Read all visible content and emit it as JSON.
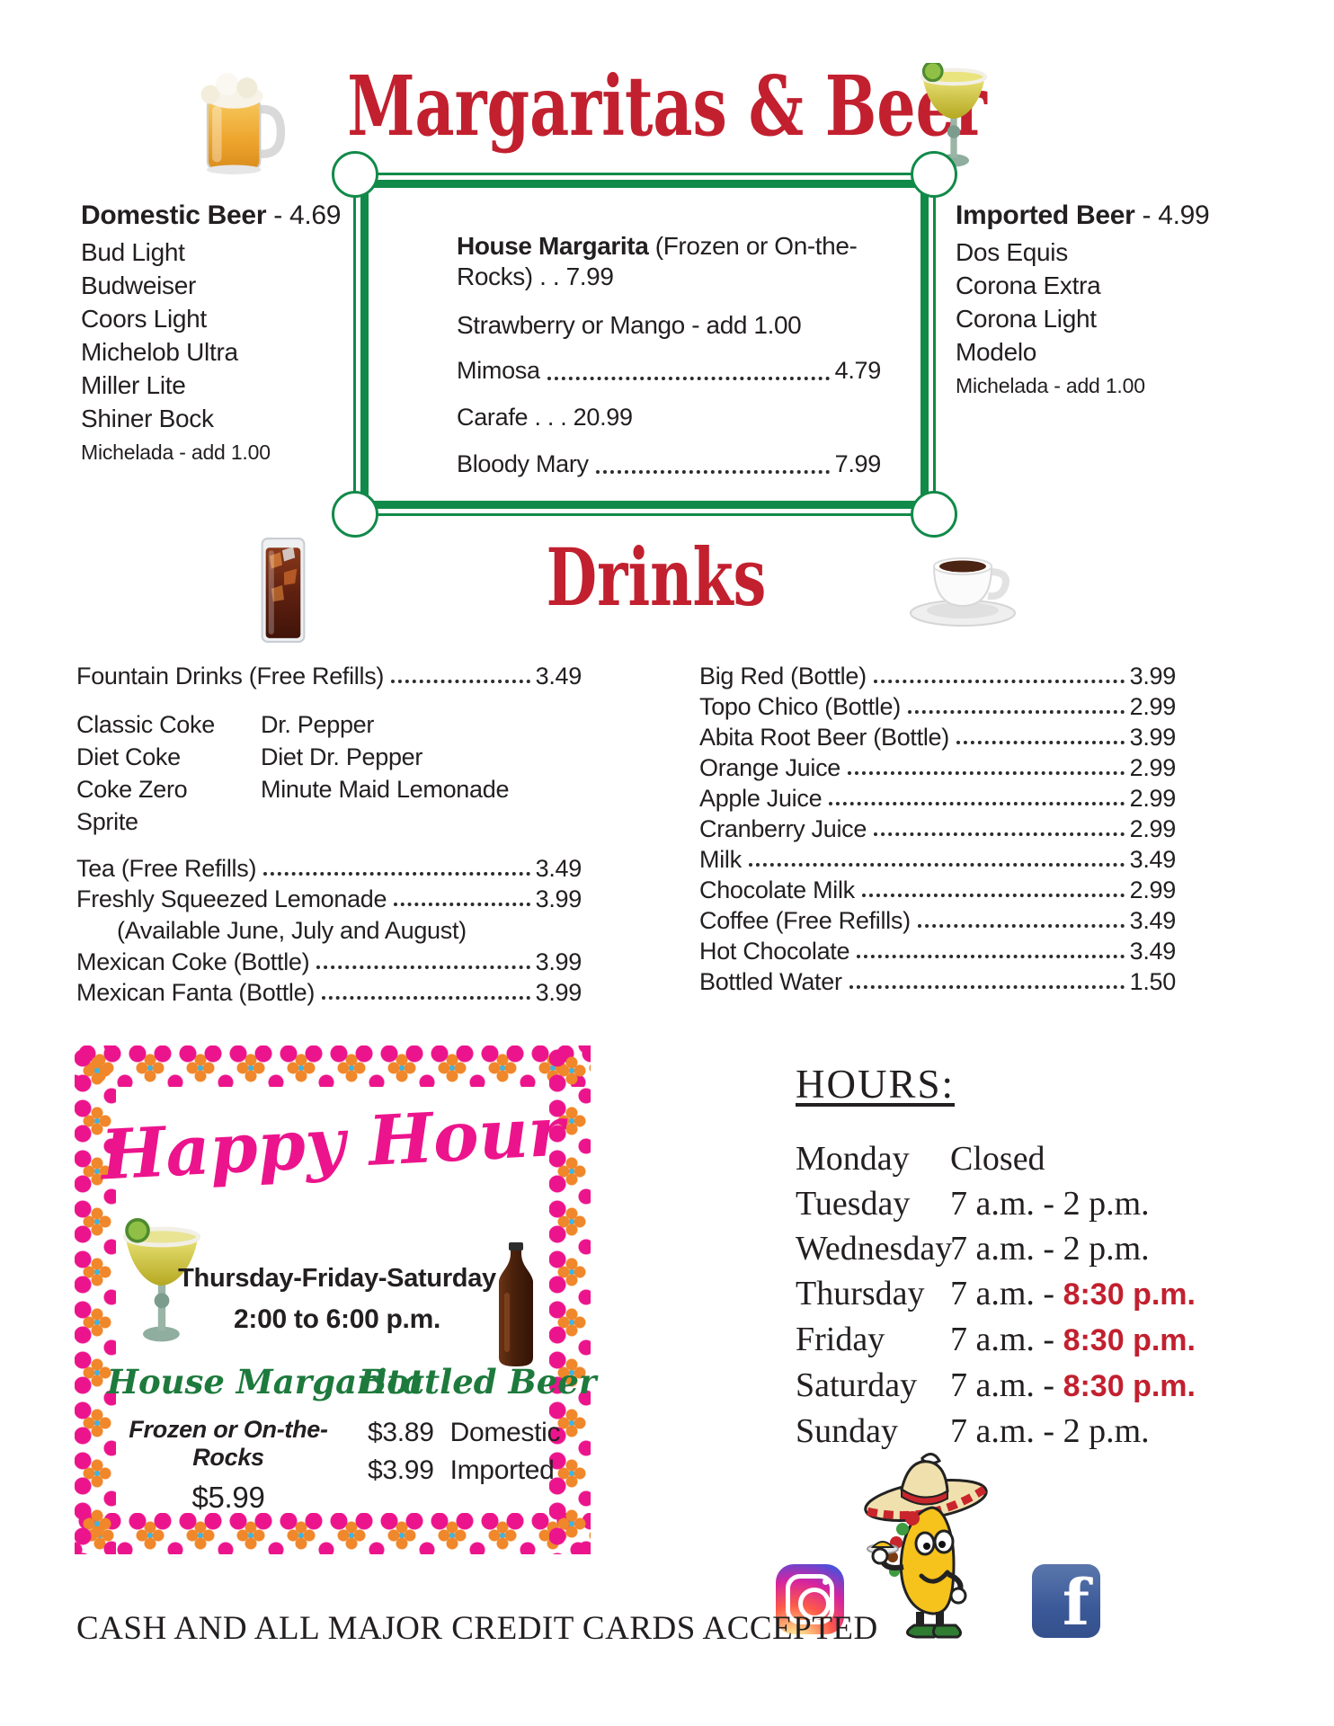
{
  "colors": {
    "accent_red": "#c2202f",
    "border_green": "#118a49",
    "happy_pink": "#ec148c",
    "garland_orange": "#f0872a",
    "script_green": "#1d7a3c"
  },
  "icons": [
    "beer-mug",
    "margarita-glass",
    "iced-tea-glass",
    "coffee-cup",
    "margarita-glass-small",
    "beer-bottle",
    "taco-mascot",
    "instagram-logo",
    "facebook-logo"
  ],
  "header": {
    "title": "Margaritas & Beer"
  },
  "domestic_beer": {
    "heading": "Domestic Beer",
    "price": "- 4.69",
    "items": [
      "Bud Light",
      "Budweiser",
      "Coors Light",
      "Michelob Ultra",
      "Miller Lite",
      "Shiner Bock"
    ],
    "note": "Michelada - add 1.00"
  },
  "imported_beer": {
    "heading": "Imported Beer",
    "price": "- 4.99",
    "items": [
      "Dos Equis",
      "Corona Extra",
      "Corona Light",
      "Modelo"
    ],
    "note": "Michelada - add 1.00"
  },
  "margarita_box": {
    "line1_bold": "House Margarita",
    "line1_rest": " (Frozen or On-the-Rocks) . . 7.99",
    "line2": "Strawberry or Mango - add 1.00",
    "rows": [
      {
        "name": "Mimosa",
        "price": "4.79"
      },
      {
        "name": "Carafe . . . 20.99"
      },
      {
        "name": "Bloody Mary",
        "price": "7.99"
      }
    ]
  },
  "drinks_section": {
    "title": "Drinks"
  },
  "drinks_left": {
    "fountain": {
      "name": "Fountain Drinks (Free Refills)",
      "price": "3.49"
    },
    "flavor_columns": [
      [
        "Classic Coke",
        "Diet Coke",
        "Coke Zero",
        "Sprite"
      ],
      [
        "Dr. Pepper",
        "Diet Dr. Pepper",
        "Minute Maid Lemonade"
      ]
    ],
    "rows": [
      {
        "name": "Tea (Free Refills)",
        "price": "3.49"
      },
      {
        "name": "Freshly Squeezed Lemonade",
        "price": "3.99",
        "note": "(Available June, July and August)"
      },
      {
        "name": "Mexican Coke (Bottle)",
        "price": "3.99"
      },
      {
        "name": "Mexican Fanta (Bottle)",
        "price": "3.99"
      }
    ]
  },
  "drinks_right": {
    "rows": [
      {
        "name": "Big Red (Bottle)",
        "price": "3.99"
      },
      {
        "name": "Topo Chico (Bottle)",
        "price": "2.99"
      },
      {
        "name": "Abita Root Beer (Bottle)",
        "price": "3.99"
      },
      {
        "name": "Orange Juice",
        "price": "2.99"
      },
      {
        "name": "Apple Juice",
        "price": "2.99"
      },
      {
        "name": "Cranberry Juice",
        "price": "2.99"
      },
      {
        "name": "Milk",
        "price": "3.49"
      },
      {
        "name": "Chocolate Milk",
        "price": "2.99"
      },
      {
        "name": "Coffee (Free Refills)",
        "price": "3.49"
      },
      {
        "name": "Hot Chocolate",
        "price": "3.49"
      },
      {
        "name": "Bottled Water",
        "price": "1.50"
      }
    ]
  },
  "happy_hour": {
    "title": "Happy Hour",
    "days": "Thursday-Friday-Saturday",
    "time": "2:00 to 6:00 p.m.",
    "house_margarita": {
      "heading": "House Margarita",
      "sub": "Frozen or On-the-Rocks",
      "price": "$5.99"
    },
    "bottled_beer": {
      "heading": "Bottled Beer",
      "lines": [
        {
          "price": "$3.89",
          "label": "Domestic"
        },
        {
          "price": "$3.99",
          "label": "Imported"
        }
      ]
    }
  },
  "hours": {
    "heading": "HOURS:",
    "rows": [
      {
        "day": "Monday",
        "time": "Closed"
      },
      {
        "day": "Tuesday",
        "time": "7 a.m. - 2 p.m."
      },
      {
        "day": "Wednesday",
        "time": "7 a.m. - 2 p.m."
      },
      {
        "day": "Thursday",
        "time": "7 a.m. - ",
        "time_red": "8:30 p.m."
      },
      {
        "day": "Friday",
        "time": "7 a.m. - ",
        "time_red": "8:30 p.m."
      },
      {
        "day": "Saturday",
        "time": "7 a.m. - ",
        "time_red": "8:30 p.m."
      },
      {
        "day": "Sunday",
        "time": "7 a.m. - 2 p.m."
      }
    ]
  },
  "footer": {
    "payment_line": "CASH AND ALL MAJOR CREDIT CARDS ACCEPTED"
  }
}
